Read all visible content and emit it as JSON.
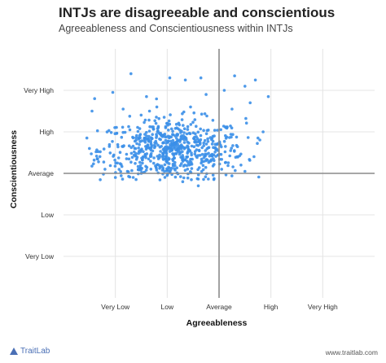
{
  "chart_data": {
    "type": "scatter",
    "title": "INTJs are disagreeable and conscientious",
    "subtitle": "Agreeableness and Conscientiousness within INTJs",
    "xlabel": "Agreeableness",
    "ylabel": "Conscientiousness",
    "xlim": [
      -3,
      3
    ],
    "ylim": [
      -3,
      3
    ],
    "x_ticks": [
      {
        "value": -2,
        "label": "Very Low"
      },
      {
        "value": -1,
        "label": "Low"
      },
      {
        "value": 0,
        "label": "Average"
      },
      {
        "value": 1,
        "label": "High"
      },
      {
        "value": 2,
        "label": "Very High"
      }
    ],
    "y_ticks": [
      {
        "value": 2,
        "label": "Very High"
      },
      {
        "value": 1,
        "label": "High"
      },
      {
        "value": 0,
        "label": "Average"
      },
      {
        "value": -1,
        "label": "Low"
      },
      {
        "value": -2,
        "label": "Very Low"
      }
    ],
    "reference_lines": {
      "x": 0,
      "y": 0
    },
    "grid": true,
    "legend": "none",
    "point_color": "#3b8fe8",
    "point_summary": {
      "count": 700,
      "x_center": -0.9,
      "x_spread": 0.7,
      "y_center": 0.55,
      "y_spread": 0.38,
      "x_range": [
        -2.5,
        1.0
      ],
      "y_range": [
        -0.2,
        2.4
      ]
    },
    "points": [
      [
        -1.7,
        2.4
      ],
      [
        -0.95,
        2.3
      ],
      [
        -0.65,
        2.25
      ],
      [
        -0.35,
        2.3
      ],
      [
        0.3,
        2.35
      ],
      [
        0.7,
        2.25
      ],
      [
        0.5,
        2.1
      ],
      [
        -2.4,
        1.8
      ],
      [
        -2.05,
        1.95
      ],
      [
        -1.4,
        1.85
      ],
      [
        -0.25,
        1.9
      ],
      [
        0.1,
        2.0
      ],
      [
        0.95,
        1.85
      ],
      [
        0.6,
        1.7
      ],
      [
        -2.45,
        1.5
      ],
      [
        -1.85,
        1.55
      ],
      [
        -1.2,
        1.6
      ],
      [
        -0.55,
        1.6
      ],
      [
        0.25,
        1.55
      ],
      [
        0.85,
        1.0
      ],
      [
        0.75,
        0.85
      ],
      [
        -2.5,
        0.6
      ],
      [
        -2.35,
        0.35
      ],
      [
        -2.2,
        0.1
      ],
      [
        -2.0,
        -0.1
      ],
      [
        -1.6,
        -0.15
      ],
      [
        -1.0,
        -0.05
      ],
      [
        -0.4,
        -0.3
      ],
      [
        -0.1,
        -0.15
      ],
      [
        0.05,
        0.1
      ],
      [
        0.5,
        0.05
      ],
      [
        0.35,
        0.4
      ],
      [
        -2.55,
        0.85
      ],
      [
        -1.5,
        0.0
      ],
      [
        -0.7,
        -0.2
      ]
    ],
    "source": "www.traitlab.com",
    "brand": "TraitLab"
  }
}
